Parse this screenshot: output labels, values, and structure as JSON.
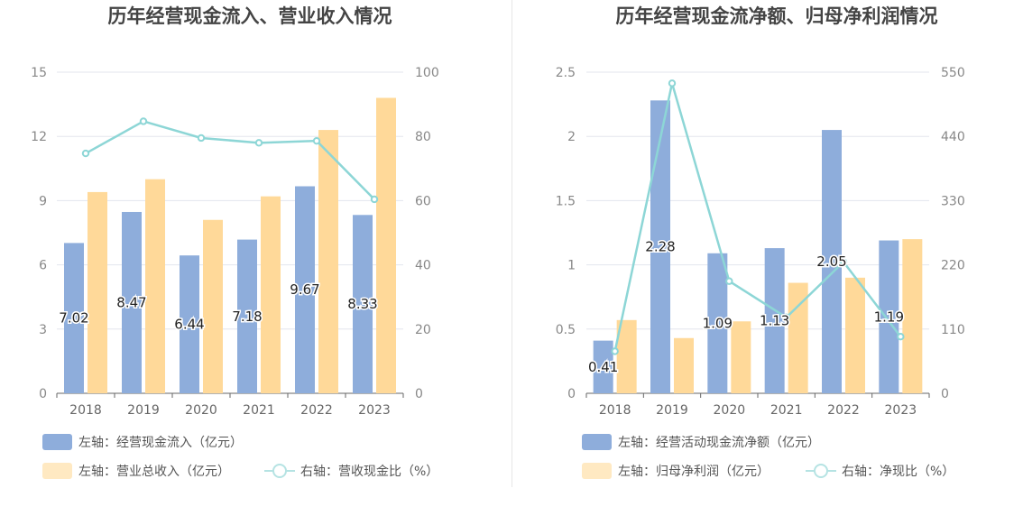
{
  "chart_data": [
    {
      "type": "bar",
      "title": "历年经营现金流入、营业收入情况",
      "categories": [
        "2018",
        "2019",
        "2020",
        "2021",
        "2022",
        "2023"
      ],
      "left_axis": {
        "ylim": [
          0,
          15
        ],
        "ticks": [
          "0",
          "3",
          "6",
          "9",
          "12",
          "15"
        ]
      },
      "right_axis": {
        "ylim": [
          0,
          100
        ],
        "ticks": [
          "0",
          "20",
          "40",
          "60",
          "80",
          "100"
        ]
      },
      "series": [
        {
          "name": "左轴：经营现金流入（亿元）",
          "type": "bar",
          "axis": "left",
          "color": "#8EADDB",
          "values": [
            7.02,
            8.47,
            6.44,
            7.18,
            9.67,
            8.33
          ],
          "labels": [
            "7.02",
            "8.47",
            "6.44",
            "7.18",
            "9.67",
            "8.33"
          ]
        },
        {
          "name": "左轴：营业总收入（亿元）",
          "type": "bar",
          "axis": "left",
          "color": "#FFD999",
          "values": [
            9.4,
            10.0,
            8.1,
            9.2,
            12.3,
            13.8
          ]
        },
        {
          "name": "右轴：营收现金比（%）",
          "type": "line",
          "axis": "right",
          "color": "#8DD6D6",
          "values": [
            74.7,
            84.7,
            79.5,
            78.0,
            78.6,
            60.4
          ]
        }
      ]
    },
    {
      "type": "bar",
      "title": "历年经营现金流净额、归母净利润情况",
      "categories": [
        "2018",
        "2019",
        "2020",
        "2021",
        "2022",
        "2023"
      ],
      "left_axis": {
        "ylim": [
          0,
          2.5
        ],
        "ticks": [
          "0",
          "0.5",
          "1",
          "1.5",
          "2",
          "2.5"
        ]
      },
      "right_axis": {
        "ylim": [
          0,
          550
        ],
        "ticks": [
          "0",
          "110",
          "220",
          "330",
          "440",
          "550"
        ]
      },
      "series": [
        {
          "name": "左轴：经营活动现金流净额（亿元）",
          "type": "bar",
          "axis": "left",
          "color": "#8EADDB",
          "values": [
            0.41,
            2.28,
            1.09,
            1.13,
            2.05,
            1.19
          ],
          "labels": [
            "0.41",
            "2.28",
            "1.09",
            "1.13",
            "2.05",
            "1.19"
          ]
        },
        {
          "name": "左轴：归母净利润（亿元）",
          "type": "bar",
          "axis": "left",
          "color": "#FFD999",
          "values": [
            0.57,
            0.43,
            0.56,
            0.86,
            0.9,
            1.2
          ]
        },
        {
          "name": "右轴：净现比（%）",
          "type": "line",
          "axis": "right",
          "color": "#8DD6D6",
          "values": [
            72,
            531,
            192,
            130,
            225,
            97
          ]
        }
      ]
    }
  ]
}
